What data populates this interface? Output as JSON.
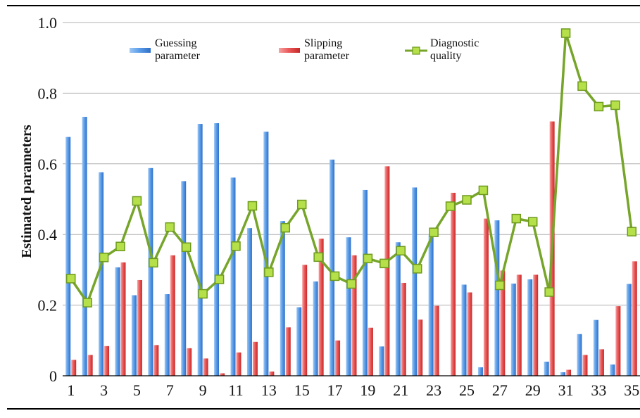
{
  "chart_data": {
    "type": "bar",
    "ylabel": "Estimated parameters",
    "xlabel": "",
    "ylim": [
      0,
      1.0
    ],
    "y_ticks": [
      "0",
      "0.2",
      "0.4",
      "0.6",
      "0.8",
      "1.0"
    ],
    "x": [
      1,
      2,
      3,
      4,
      5,
      6,
      7,
      8,
      9,
      10,
      11,
      12,
      13,
      14,
      15,
      16,
      17,
      18,
      19,
      20,
      21,
      22,
      23,
      24,
      25,
      26,
      27,
      28,
      29,
      30,
      31,
      32,
      33,
      34,
      35
    ],
    "x_tick_labels": [
      "1",
      "3",
      "5",
      "7",
      "9",
      "11",
      "13",
      "15",
      "17",
      "19",
      "21",
      "23",
      "25",
      "27",
      "29",
      "31",
      "33",
      "35"
    ],
    "grid": true,
    "legend_position": "top",
    "series": [
      {
        "name": "Guessing parameter",
        "legend_lines": [
          "Guessing",
          "parameter"
        ],
        "type": "bar",
        "color": "#4a90e2",
        "values": [
          0.676,
          0.733,
          0.576,
          0.307,
          0.228,
          0.588,
          0.231,
          0.551,
          0.713,
          0.715,
          0.561,
          0.418,
          0.691,
          0.438,
          0.194,
          0.267,
          0.612,
          0.392,
          0.526,
          0.083,
          0.378,
          0.533,
          0.398,
          0.0,
          0.258,
          0.024,
          0.44,
          0.261,
          0.273,
          0.04,
          0.01,
          0.118,
          0.158,
          0.032,
          0.26
        ]
      },
      {
        "name": "Slipping parameter",
        "legend_lines": [
          "Slipping",
          "parameter"
        ],
        "type": "bar",
        "color": "#e84c4c",
        "values": [
          0.045,
          0.059,
          0.084,
          0.321,
          0.271,
          0.087,
          0.341,
          0.078,
          0.049,
          0.007,
          0.066,
          0.096,
          0.012,
          0.137,
          0.314,
          0.388,
          0.1,
          0.341,
          0.136,
          0.593,
          0.263,
          0.159,
          0.198,
          0.518,
          0.236,
          0.445,
          0.298,
          0.286,
          0.286,
          0.72,
          0.017,
          0.059,
          0.075,
          0.197,
          0.324
        ]
      },
      {
        "name": "Diagnostic quality",
        "legend_lines": [
          "Diagnostic",
          "quality"
        ],
        "type": "line",
        "color": "#76a52a",
        "values": [
          0.275,
          0.207,
          0.335,
          0.366,
          0.495,
          0.32,
          0.421,
          0.364,
          0.232,
          0.273,
          0.367,
          0.481,
          0.293,
          0.419,
          0.485,
          0.336,
          0.282,
          0.26,
          0.332,
          0.318,
          0.354,
          0.303,
          0.406,
          0.48,
          0.498,
          0.525,
          0.256,
          0.445,
          0.436,
          0.237,
          0.97,
          0.82,
          0.762,
          0.766,
          0.408
        ]
      }
    ]
  }
}
